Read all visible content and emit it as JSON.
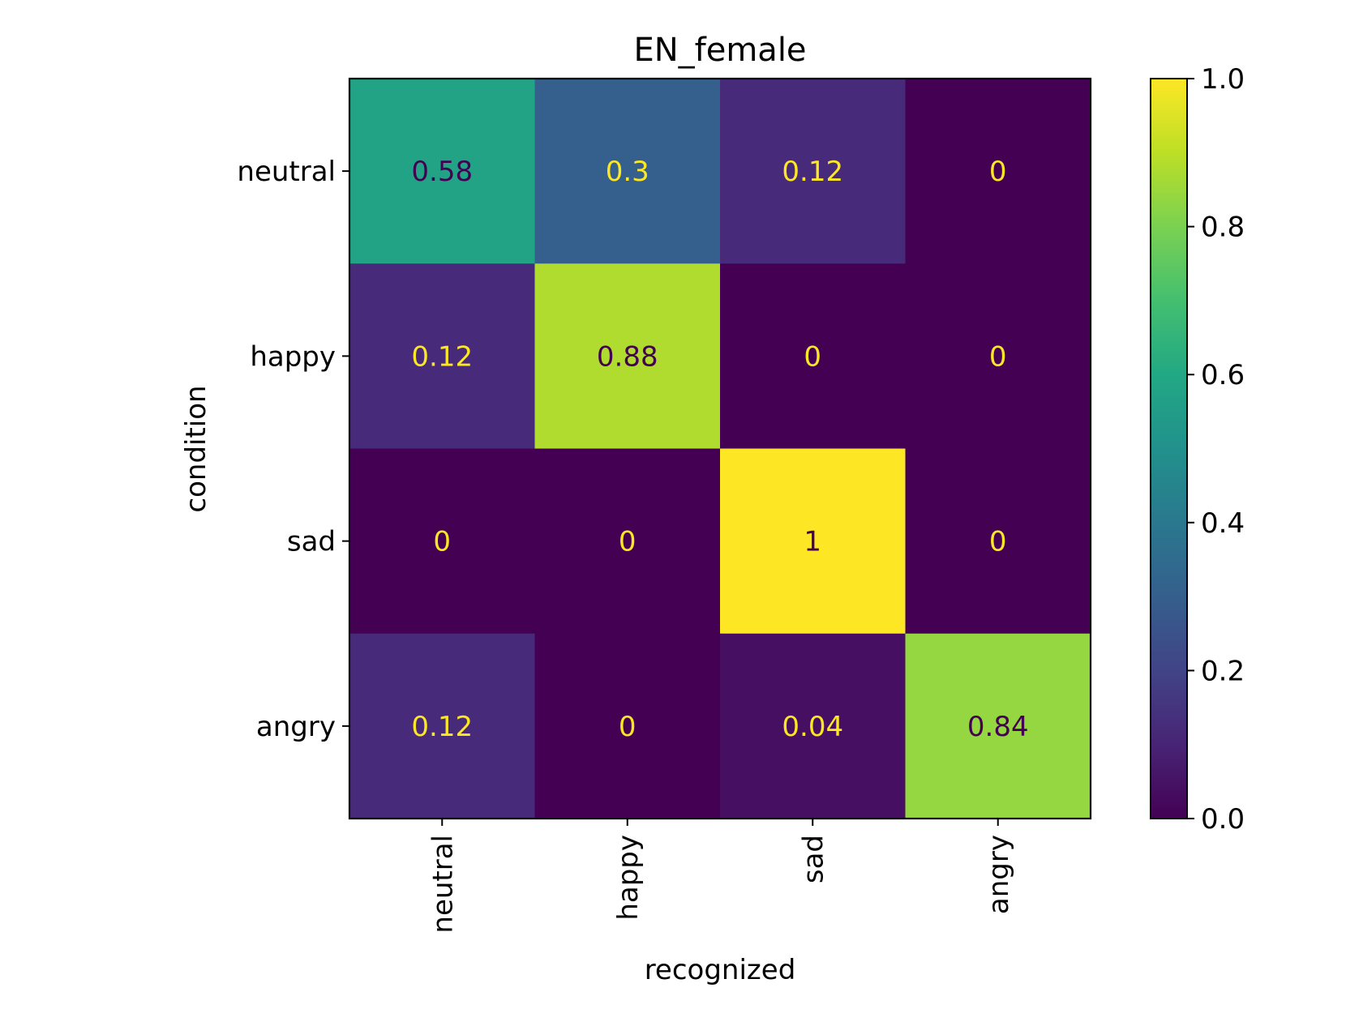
{
  "chart_data": {
    "type": "heatmap",
    "title": "EN_female",
    "xlabel": "recognized",
    "ylabel": "condition",
    "x_categories": [
      "neutral",
      "happy",
      "sad",
      "angry"
    ],
    "y_categories": [
      "neutral",
      "happy",
      "sad",
      "angry"
    ],
    "values": [
      [
        0.58,
        0.3,
        0.12,
        0
      ],
      [
        0.12,
        0.88,
        0,
        0
      ],
      [
        0,
        0,
        1,
        0
      ],
      [
        0.12,
        0,
        0.04,
        0.84
      ]
    ],
    "cell_labels": [
      [
        "0.58",
        "0.3",
        "0.12",
        "0"
      ],
      [
        "0.12",
        "0.88",
        "0",
        "0"
      ],
      [
        "0",
        "0",
        "1",
        "0"
      ],
      [
        "0.12",
        "0",
        "0.04",
        "0.84"
      ]
    ],
    "colormap": "viridis",
    "vmin": 0.0,
    "vmax": 1.0,
    "colorbar": {
      "ticks": [
        0.0,
        0.2,
        0.4,
        0.6,
        0.8,
        1.0
      ],
      "tick_labels": [
        "0.0",
        "0.2",
        "0.4",
        "0.6",
        "0.8",
        "1.0"
      ]
    },
    "text_colors": {
      "dark": "#440154",
      "light": "#fde725"
    }
  }
}
